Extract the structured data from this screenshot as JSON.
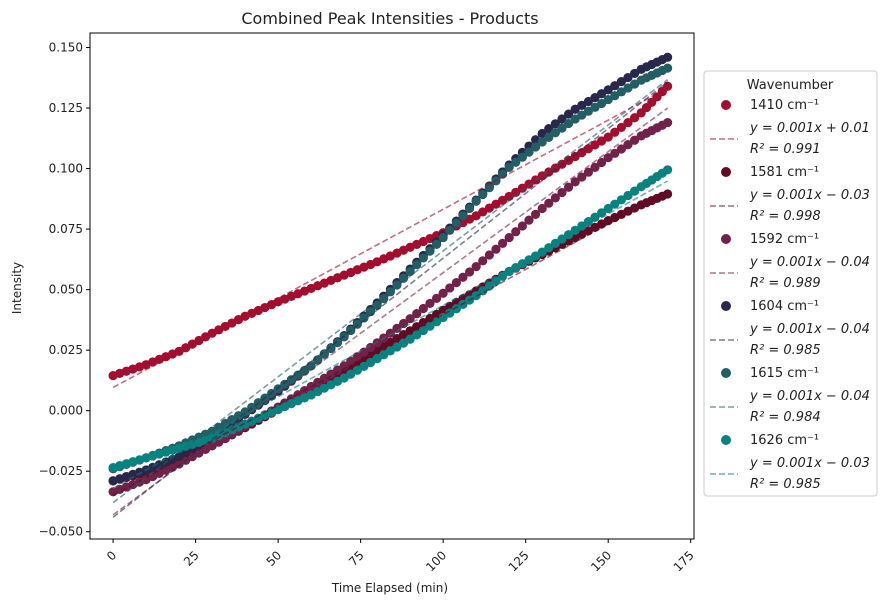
{
  "chart_data": {
    "type": "scatter",
    "title": "Combined Peak Intensities - Products",
    "xlabel": "Time Elapsed (min)",
    "ylabel": "Intensity",
    "xlim": [
      -7,
      176
    ],
    "ylim": [
      -0.053,
      0.156
    ],
    "xticks": [
      0,
      25,
      50,
      75,
      100,
      125,
      150,
      175
    ],
    "xtick_labels": [
      "0",
      "25",
      "50",
      "75",
      "100",
      "125",
      "150",
      "175"
    ],
    "yticks": [
      -0.05,
      -0.025,
      0.0,
      0.025,
      0.05,
      0.075,
      0.1,
      0.125,
      0.15
    ],
    "ytick_labels": [
      "−0.050",
      "−0.025",
      "0.000",
      "0.025",
      "0.050",
      "0.075",
      "0.100",
      "0.125",
      "0.150"
    ],
    "grid": false,
    "legend_title": "Wavenumber",
    "legend_placement": "right-outside",
    "series": [
      {
        "name": "1410 cm⁻¹",
        "color": "#a30d2e",
        "x": [
          0,
          10,
          20,
          30,
          40,
          50,
          60,
          70,
          80,
          90,
          100,
          110,
          120,
          130,
          140,
          150,
          160,
          168
        ],
        "y": [
          0.0145,
          0.019,
          0.0245,
          0.032,
          0.039,
          0.045,
          0.0505,
          0.056,
          0.0615,
          0.0675,
          0.0735,
          0.0805,
          0.0885,
          0.097,
          0.105,
          0.113,
          0.123,
          0.134
        ],
        "fit": {
          "slope": 0.000736,
          "intercept": 0.0096,
          "eq": "y = 0.001x + 0.01",
          "r2": "R² = 0.991"
        }
      },
      {
        "name": "1581 cm⁻¹",
        "color": "#620a25",
        "x": [
          0,
          10,
          20,
          30,
          40,
          50,
          60,
          70,
          80,
          90,
          100,
          110,
          120,
          130,
          140,
          150,
          160,
          168
        ],
        "y": [
          -0.029,
          -0.0255,
          -0.021,
          -0.0145,
          -0.007,
          0.0005,
          0.008,
          0.0165,
          0.025,
          0.033,
          0.0415,
          0.0495,
          0.0575,
          0.0645,
          0.0715,
          0.0785,
          0.085,
          0.0895
        ],
        "fit": {
          "slope": 0.000747,
          "intercept": -0.035,
          "eq": "y = 0.001x − 0.03",
          "r2": "R² = 0.998"
        }
      },
      {
        "name": "1592 cm⁻¹",
        "color": "#722249",
        "x": [
          0,
          10,
          20,
          30,
          40,
          50,
          60,
          70,
          80,
          90,
          100,
          110,
          120,
          130,
          140,
          150,
          160,
          168
        ],
        "y": [
          -0.0335,
          -0.0285,
          -0.022,
          -0.0145,
          -0.0065,
          0.0015,
          0.01,
          0.0185,
          0.028,
          0.038,
          0.0485,
          0.0595,
          0.0715,
          0.0835,
          0.0945,
          0.1045,
          0.1135,
          0.119
        ],
        "fit": {
          "slope": 0.001,
          "intercept": -0.043,
          "eq": "y = 0.001x − 0.04",
          "r2": "R² = 0.989"
        }
      },
      {
        "name": "1604 cm⁻¹",
        "color": "#29284a",
        "x": [
          0,
          10,
          20,
          30,
          40,
          50,
          60,
          70,
          80,
          90,
          100,
          110,
          120,
          130,
          140,
          150,
          160,
          168
        ],
        "y": [
          -0.029,
          -0.0245,
          -0.019,
          -0.0105,
          -0.0015,
          0.008,
          0.0185,
          0.031,
          0.0445,
          0.0585,
          0.0725,
          0.087,
          0.1015,
          0.1145,
          0.1245,
          0.1325,
          0.141,
          0.146
        ],
        "fit": {
          "slope": 0.00107,
          "intercept": -0.044,
          "eq": "y = 0.001x − 0.04",
          "r2": "R² = 0.985"
        }
      },
      {
        "name": "1615 cm⁻¹",
        "color": "#225e64",
        "x": [
          0,
          10,
          20,
          30,
          40,
          50,
          60,
          70,
          80,
          90,
          100,
          110,
          120,
          130,
          140,
          150,
          160,
          168
        ],
        "y": [
          -0.024,
          -0.0195,
          -0.0145,
          -0.0085,
          -0.0005,
          0.009,
          0.0185,
          0.0305,
          0.0435,
          0.0575,
          0.0715,
          0.0865,
          0.1005,
          0.111,
          0.1205,
          0.1285,
          0.1365,
          0.1415
        ],
        "fit": {
          "slope": 0.00104,
          "intercept": -0.038,
          "eq": "y = 0.001x − 0.04",
          "r2": "R² = 0.984"
        }
      },
      {
        "name": "1626 cm⁻¹",
        "color": "#08827f",
        "x": [
          0,
          10,
          20,
          30,
          40,
          50,
          60,
          70,
          80,
          90,
          100,
          110,
          120,
          130,
          140,
          150,
          160,
          168
        ],
        "y": [
          -0.0235,
          -0.0195,
          -0.0155,
          -0.0115,
          -0.0055,
          0.0005,
          0.0065,
          0.0135,
          0.0215,
          0.0295,
          0.0385,
          0.0475,
          0.0575,
          0.0655,
          0.0745,
          0.0835,
          0.0925,
          0.0995
        ],
        "fit": {
          "slope": 0.000755,
          "intercept": -0.032,
          "eq": "y = 0.001x − 0.03",
          "r2": "R² = 0.985"
        }
      }
    ]
  }
}
